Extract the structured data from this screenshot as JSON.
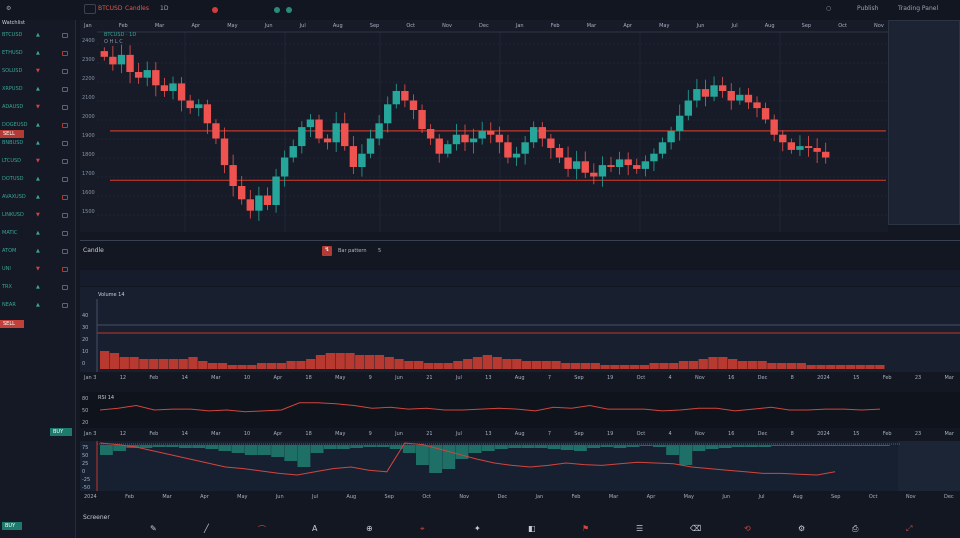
{
  "topbar": {
    "symbol": "BTCUSD",
    "timeframe": "1D",
    "mode": "Candles",
    "right_text_1": "Publish",
    "right_text_2": "Trading Panel"
  },
  "sidebar": {
    "title": "Watchlist",
    "items": [
      {
        "label": "BTCUSD",
        "value": "▲"
      },
      {
        "label": "ETHUSD",
        "value": "▲"
      },
      {
        "label": "SOLUSD",
        "value": "▼"
      },
      {
        "label": "XRPUSD",
        "value": "▲"
      },
      {
        "label": "ADAUSD",
        "value": "▼"
      },
      {
        "label": "DOGEUSD",
        "value": "▲"
      },
      {
        "label": "BNBUSD",
        "value": "▲"
      },
      {
        "label": "LTCUSD",
        "value": "▼"
      },
      {
        "label": "DOTUSD",
        "value": "▲"
      },
      {
        "label": "AVAXUSD",
        "value": "▲"
      },
      {
        "label": "LINKUSD",
        "value": "▼"
      },
      {
        "label": "MATIC",
        "value": "▲"
      },
      {
        "label": "ATOM",
        "value": "▲"
      },
      {
        "label": "UNI",
        "value": "▼"
      },
      {
        "label": "TRX",
        "value": "▲"
      },
      {
        "label": "NEAR",
        "value": "▲"
      }
    ],
    "sell_label": "SELL",
    "buy_label": "BUY"
  },
  "main_chart": {
    "legend": "BTCUSD · 1D",
    "sub_legend": "O H L C",
    "price_labels": [
      "2400",
      "2300",
      "2200",
      "2100",
      "2000",
      "1900",
      "1800",
      "1700",
      "1600",
      "1500"
    ],
    "time_labels": [
      "Jan",
      "Feb",
      "Mar",
      "Apr",
      "May",
      "Jun",
      "Jul",
      "Aug",
      "Sep",
      "Oct",
      "Nov",
      "Dec",
      "Jan",
      "Feb",
      "Mar",
      "Apr",
      "May",
      "Jun",
      "Jul",
      "Aug",
      "Sep",
      "Oct",
      "Nov"
    ],
    "colors": {
      "up": "#26a69a",
      "down": "#ef5350",
      "level": "#c0392b"
    },
    "levels": [
      1940,
      1680
    ],
    "closes": [
      2330,
      2290,
      2340,
      2250,
      2220,
      2260,
      2180,
      2150,
      2190,
      2100,
      2060,
      2080,
      1980,
      1900,
      1760,
      1650,
      1580,
      1520,
      1600,
      1550,
      1700,
      1800,
      1860,
      1960,
      2000,
      1900,
      1880,
      1980,
      1860,
      1750,
      1820,
      1900,
      1980,
      2080,
      2150,
      2100,
      2050,
      1950,
      1900,
      1820,
      1870,
      1920,
      1880,
      1900,
      1940,
      1920,
      1880,
      1800,
      1820,
      1880,
      1960,
      1900,
      1850,
      1800,
      1740,
      1780,
      1720,
      1700,
      1760,
      1750,
      1790,
      1760,
      1740,
      1780,
      1820,
      1880,
      1940,
      2020,
      2100,
      2160,
      2120,
      2180,
      2150,
      2100,
      2130,
      2090,
      2060,
      2000,
      1920,
      1880,
      1840,
      1860,
      1850,
      1830,
      1800
    ]
  },
  "panel_header": {
    "label": "Candle",
    "center_text": "Bar pattern",
    "center_value": "5"
  },
  "volume": {
    "legend": "Volume 14",
    "scale_labels": [
      "40",
      "30",
      "20",
      "10",
      "0"
    ],
    "values": [
      9,
      8,
      6,
      6,
      5,
      5,
      5,
      5,
      5,
      6,
      4,
      3,
      3,
      2,
      2,
      2,
      3,
      3,
      3,
      4,
      4,
      5,
      7,
      8,
      8,
      8,
      7,
      7,
      7,
      6,
      5,
      4,
      4,
      3,
      3,
      3,
      4,
      5,
      6,
      7,
      6,
      5,
      5,
      4,
      4,
      4,
      4,
      3,
      3,
      3,
      3,
      2,
      2,
      2,
      2,
      2,
      3,
      3,
      3,
      4,
      4,
      5,
      6,
      6,
      5,
      4,
      4,
      4,
      3,
      3,
      3,
      3,
      2,
      2,
      2,
      2,
      2,
      2,
      2,
      2
    ]
  },
  "time_axis": [
    "Jan 3",
    "12",
    "Feb",
    "14",
    "Mar",
    "10",
    "Apr",
    "18",
    "May",
    "9",
    "Jun",
    "21",
    "Jul",
    "13",
    "Aug",
    "7",
    "Sep",
    "19",
    "Oct",
    "4",
    "Nov",
    "16",
    "Dec",
    "8",
    "2024",
    "15",
    "Feb",
    "23",
    "Mar"
  ],
  "rsi": {
    "legend": "RSI 14",
    "scale_labels": [
      "80",
      "50",
      "20"
    ],
    "values": [
      50,
      52,
      55,
      50,
      51,
      51,
      49,
      50,
      48,
      49,
      50,
      58,
      58,
      57,
      55,
      52,
      53,
      51,
      52,
      50,
      50,
      51,
      52,
      51,
      49,
      53,
      52,
      55,
      51,
      51,
      51,
      49,
      50,
      52,
      52,
      49,
      51,
      53,
      50,
      50,
      51,
      51,
      50,
      51
    ]
  },
  "macd": {
    "scale_labels": [
      "75",
      "50",
      "25",
      "0",
      "-25",
      "-50"
    ],
    "histogram": [
      10,
      6,
      3,
      3,
      2,
      2,
      3,
      3,
      4,
      6,
      8,
      10,
      10,
      12,
      16,
      22,
      8,
      4,
      4,
      3,
      2,
      2,
      4,
      8,
      20,
      28,
      24,
      14,
      8,
      6,
      4,
      3,
      3,
      3,
      4,
      5,
      6,
      3,
      2,
      3,
      2,
      1,
      2,
      10,
      20,
      6,
      4,
      3,
      2,
      2,
      2,
      1,
      1,
      1,
      1,
      1,
      1,
      1,
      1,
      1
    ],
    "signal": [
      60,
      58,
      55,
      50,
      45,
      40,
      35,
      30,
      28,
      25,
      22,
      20,
      24,
      28,
      30,
      26,
      24,
      60,
      58,
      52,
      46,
      40,
      35,
      32,
      30,
      32,
      35,
      33,
      32,
      34,
      36,
      35,
      34,
      30,
      28,
      26,
      24,
      22,
      22,
      21,
      20,
      24
    ],
    "time_labels": [
      "2024",
      "Feb",
      "Mar",
      "Apr",
      "May",
      "Jun",
      "Jul",
      "Aug",
      "Sep",
      "Oct",
      "Nov",
      "Dec",
      "Jan",
      "Feb",
      "Mar",
      "Apr",
      "May",
      "Jun",
      "Jul",
      "Aug",
      "Sep",
      "Oct",
      "Nov",
      "Dec"
    ]
  },
  "bottom": {
    "label": "Screener",
    "tools": [
      "✎",
      "╱",
      "⌒",
      "A",
      "⊕",
      "⌖",
      "✦",
      "◧",
      "⚑",
      "☰",
      "⌫",
      "⟲",
      "⚙",
      "⎙",
      "⤢"
    ]
  }
}
